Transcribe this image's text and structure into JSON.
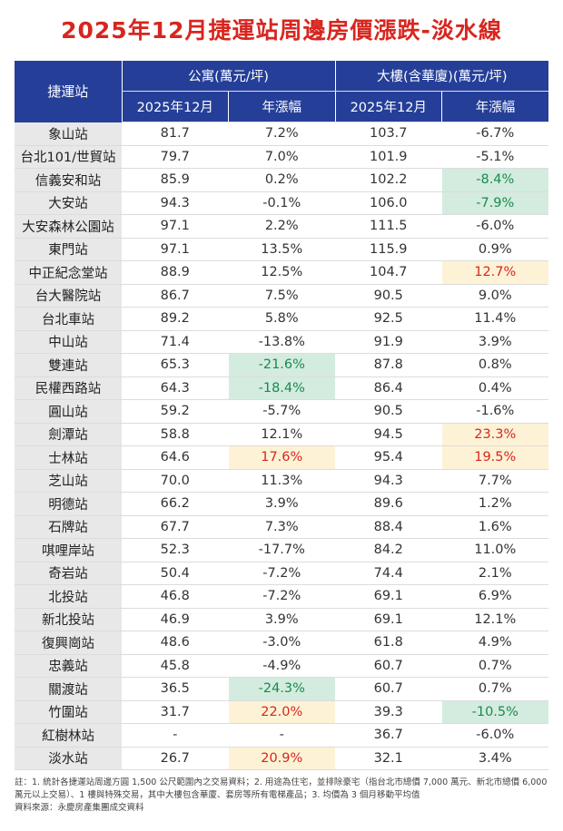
{
  "title": "2025年12月捷運站周邊房價漲跌-淡水線",
  "headers": {
    "station": "捷運站",
    "apartment_group": "公寓(萬元/坪)",
    "building_group": "大樓(含華廈)(萬元/坪)",
    "period": "2025年12月",
    "yoy": "年漲幅"
  },
  "colors": {
    "title": "#d7261f",
    "header_bg": "#253f99",
    "station_bg": "#e8e8e8",
    "highlight_green_bg": "#d3ecdf",
    "highlight_green_text": "#1a8a4c",
    "highlight_yellow_bg": "#fdf2d6",
    "highlight_yellow_text": "#d7261f"
  },
  "chart_data": {
    "type": "table",
    "columns": [
      "捷運站",
      "公寓 2025年12月",
      "公寓 年漲幅",
      "大樓(含華廈) 2025年12月",
      "大樓(含華廈) 年漲幅"
    ],
    "rows": [
      {
        "station": "象山站",
        "apt_price": "81.7",
        "apt_yoy": "7.2%",
        "bld_price": "103.7",
        "bld_yoy": "-6.7%"
      },
      {
        "station": "台北101/世貿站",
        "apt_price": "79.7",
        "apt_yoy": "7.0%",
        "bld_price": "101.9",
        "bld_yoy": "-5.1%"
      },
      {
        "station": "信義安和站",
        "apt_price": "85.9",
        "apt_yoy": "0.2%",
        "bld_price": "102.2",
        "bld_yoy": "-8.4%",
        "bld_hl": "green"
      },
      {
        "station": "大安站",
        "apt_price": "94.3",
        "apt_yoy": "-0.1%",
        "bld_price": "106.0",
        "bld_yoy": "-7.9%",
        "bld_hl": "green"
      },
      {
        "station": "大安森林公園站",
        "apt_price": "97.1",
        "apt_yoy": "2.2%",
        "bld_price": "111.5",
        "bld_yoy": "-6.0%"
      },
      {
        "station": "東門站",
        "apt_price": "97.1",
        "apt_yoy": "13.5%",
        "bld_price": "115.9",
        "bld_yoy": "0.9%"
      },
      {
        "station": "中正紀念堂站",
        "apt_price": "88.9",
        "apt_yoy": "12.5%",
        "bld_price": "104.7",
        "bld_yoy": "12.7%",
        "bld_hl": "yellow"
      },
      {
        "station": "台大醫院站",
        "apt_price": "86.7",
        "apt_yoy": "7.5%",
        "bld_price": "90.5",
        "bld_yoy": "9.0%"
      },
      {
        "station": "台北車站",
        "apt_price": "89.2",
        "apt_yoy": "5.8%",
        "bld_price": "92.5",
        "bld_yoy": "11.4%"
      },
      {
        "station": "中山站",
        "apt_price": "71.4",
        "apt_yoy": "-13.8%",
        "bld_price": "91.9",
        "bld_yoy": "3.9%"
      },
      {
        "station": "雙連站",
        "apt_price": "65.3",
        "apt_yoy": "-21.6%",
        "apt_hl": "green",
        "bld_price": "87.8",
        "bld_yoy": "0.8%"
      },
      {
        "station": "民權西路站",
        "apt_price": "64.3",
        "apt_yoy": "-18.4%",
        "apt_hl": "green",
        "bld_price": "86.4",
        "bld_yoy": "0.4%"
      },
      {
        "station": "圓山站",
        "apt_price": "59.2",
        "apt_yoy": "-5.7%",
        "bld_price": "90.5",
        "bld_yoy": "-1.6%"
      },
      {
        "station": "劍潭站",
        "apt_price": "58.8",
        "apt_yoy": "12.1%",
        "bld_price": "94.5",
        "bld_yoy": "23.3%",
        "bld_hl": "yellow"
      },
      {
        "station": "士林站",
        "apt_price": "64.6",
        "apt_yoy": "17.6%",
        "apt_hl": "yellow",
        "bld_price": "95.4",
        "bld_yoy": "19.5%",
        "bld_hl": "yellow"
      },
      {
        "station": "芝山站",
        "apt_price": "70.0",
        "apt_yoy": "11.3%",
        "bld_price": "94.3",
        "bld_yoy": "7.7%"
      },
      {
        "station": "明德站",
        "apt_price": "66.2",
        "apt_yoy": "3.9%",
        "bld_price": "89.6",
        "bld_yoy": "1.2%"
      },
      {
        "station": "石牌站",
        "apt_price": "67.7",
        "apt_yoy": "7.3%",
        "bld_price": "88.4",
        "bld_yoy": "1.6%"
      },
      {
        "station": "唭哩岸站",
        "apt_price": "52.3",
        "apt_yoy": "-17.7%",
        "bld_price": "84.2",
        "bld_yoy": "11.0%"
      },
      {
        "station": "奇岩站",
        "apt_price": "50.4",
        "apt_yoy": "-7.2%",
        "bld_price": "74.4",
        "bld_yoy": "2.1%"
      },
      {
        "station": "北投站",
        "apt_price": "46.8",
        "apt_yoy": "-7.2%",
        "bld_price": "69.1",
        "bld_yoy": "6.9%"
      },
      {
        "station": "新北投站",
        "apt_price": "46.9",
        "apt_yoy": "3.9%",
        "bld_price": "69.1",
        "bld_yoy": "12.1%"
      },
      {
        "station": "復興崗站",
        "apt_price": "48.6",
        "apt_yoy": "-3.0%",
        "bld_price": "61.8",
        "bld_yoy": "4.9%"
      },
      {
        "station": "忠義站",
        "apt_price": "45.8",
        "apt_yoy": "-4.9%",
        "bld_price": "60.7",
        "bld_yoy": "0.7%"
      },
      {
        "station": "關渡站",
        "apt_price": "36.5",
        "apt_yoy": "-24.3%",
        "apt_hl": "green",
        "bld_price": "60.7",
        "bld_yoy": "0.7%"
      },
      {
        "station": "竹圍站",
        "apt_price": "31.7",
        "apt_yoy": "22.0%",
        "apt_hl": "yellow",
        "bld_price": "39.3",
        "bld_yoy": "-10.5%",
        "bld_hl": "green"
      },
      {
        "station": "紅樹林站",
        "apt_price": "-",
        "apt_yoy": "-",
        "bld_price": "36.7",
        "bld_yoy": "-6.0%"
      },
      {
        "station": "淡水站",
        "apt_price": "26.7",
        "apt_yoy": "20.9%",
        "apt_hl": "yellow",
        "bld_price": "32.1",
        "bld_yoy": "3.4%"
      }
    ]
  },
  "notes": {
    "line1": "註：1. 統計各捷運站周邊方圓 1,500 公尺範圍內之交易資料；2. 用途為住宅，並排除豪宅（指台北市總價 7,000 萬元、新北市總價 6,000",
    "line2": "萬元以上交易）、1 樓與特殊交易，其中大樓包含華廈、套房等所有電梯產品；3. 均價為 3 個月移動平均值",
    "source": "資料來源：永慶房產集團成交資料"
  }
}
